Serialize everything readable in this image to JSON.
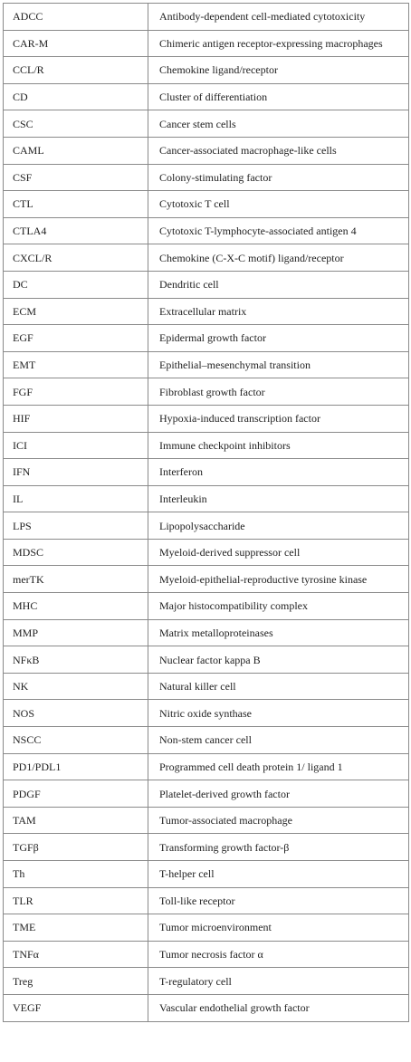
{
  "abbreviations": [
    {
      "abbr": "ADCC",
      "definition": "Antibody-dependent cell-mediated cytotoxicity"
    },
    {
      "abbr": "CAR-M",
      "definition": "Chimeric antigen receptor-expressing macrophages"
    },
    {
      "abbr": "CCL/R",
      "definition": "Chemokine ligand/receptor"
    },
    {
      "abbr": "CD",
      "definition": "Cluster of differentiation"
    },
    {
      "abbr": "CSC",
      "definition": "Cancer stem cells"
    },
    {
      "abbr": "CAML",
      "definition": "Cancer-associated macrophage-like cells"
    },
    {
      "abbr": "CSF",
      "definition": "Colony-stimulating factor"
    },
    {
      "abbr": "CTL",
      "definition": "Cytotoxic T cell"
    },
    {
      "abbr": "CTLA4",
      "definition": "Cytotoxic T-lymphocyte-associated antigen 4"
    },
    {
      "abbr": "CXCL/R",
      "definition": "Chemokine (C-X-C motif) ligand/receptor"
    },
    {
      "abbr": "DC",
      "definition": "Dendritic cell"
    },
    {
      "abbr": "ECM",
      "definition": "Extracellular matrix"
    },
    {
      "abbr": "EGF",
      "definition": "Epidermal growth factor"
    },
    {
      "abbr": "EMT",
      "definition": "Epithelial–mesenchymal transition"
    },
    {
      "abbr": "FGF",
      "definition": "Fibroblast growth factor"
    },
    {
      "abbr": "HIF",
      "definition": "Hypoxia-induced transcription factor"
    },
    {
      "abbr": "ICI",
      "definition": "Immune checkpoint inhibitors"
    },
    {
      "abbr": "IFN",
      "definition": "Interferon"
    },
    {
      "abbr": "IL",
      "definition": "Interleukin"
    },
    {
      "abbr": "LPS",
      "definition": "Lipopolysaccharide"
    },
    {
      "abbr": "MDSC",
      "definition": "Myeloid-derived suppressor cell"
    },
    {
      "abbr": "merTK",
      "definition": "Myeloid-epithelial-reproductive tyrosine kinase"
    },
    {
      "abbr": "MHC",
      "definition": "Major histocompatibility complex"
    },
    {
      "abbr": "MMP",
      "definition": "Matrix metalloproteinases"
    },
    {
      "abbr": "NFκB",
      "definition": "Nuclear factor kappa B"
    },
    {
      "abbr": "NK",
      "definition": "Natural killer cell"
    },
    {
      "abbr": "NOS",
      "definition": "Nitric oxide synthase"
    },
    {
      "abbr": "NSCC",
      "definition": "Non-stem cancer cell"
    },
    {
      "abbr": "PD1/PDL1",
      "definition": "Programmed cell death protein 1/ ligand 1"
    },
    {
      "abbr": "PDGF",
      "definition": "Platelet-derived growth factor"
    },
    {
      "abbr": "TAM",
      "definition": "Tumor-associated macrophage"
    },
    {
      "abbr": "TGFβ",
      "definition": "Transforming growth factor-β"
    },
    {
      "abbr": "Th",
      "definition": "T-helper cell"
    },
    {
      "abbr": "TLR",
      "definition": "Toll-like receptor"
    },
    {
      "abbr": "TME",
      "definition": "Tumor microenvironment"
    },
    {
      "abbr": "TNFα",
      "definition": "Tumor necrosis factor α"
    },
    {
      "abbr": "Treg",
      "definition": "T-regulatory cell"
    },
    {
      "abbr": "VEGF",
      "definition": "Vascular endothelial growth factor"
    }
  ]
}
